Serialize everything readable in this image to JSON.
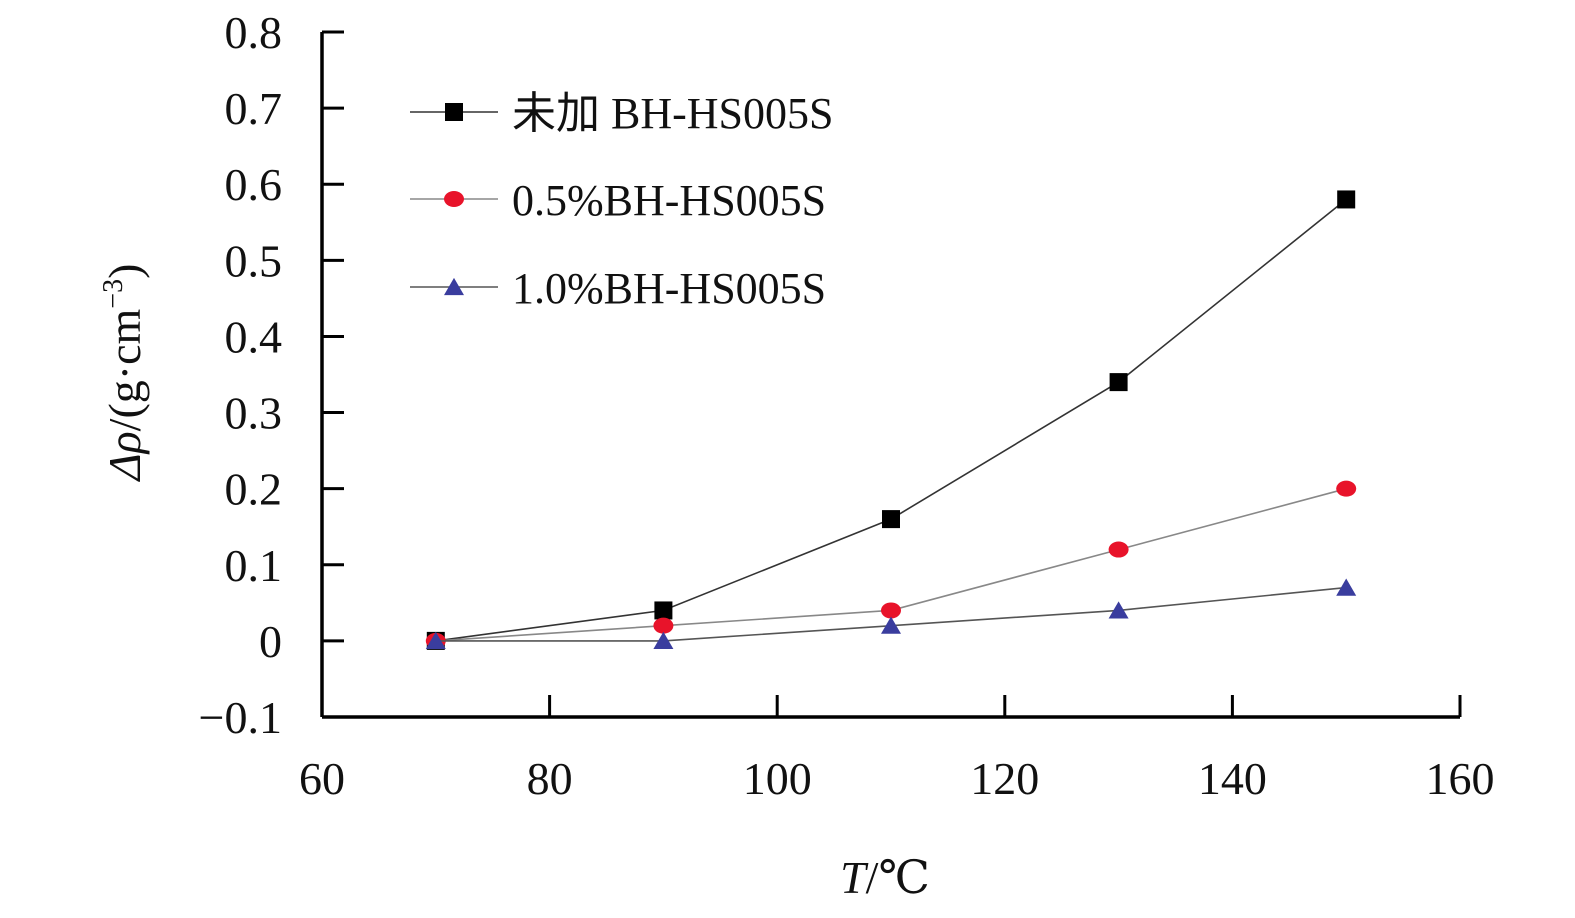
{
  "chart_data": {
    "type": "line",
    "xlabel": "T/℃",
    "ylabel": "Δρ/(g·cm⁻³)",
    "xlabel_parts": {
      "italic": "T",
      "rest": "/℃"
    },
    "ylabel_parts": {
      "italic": "Δρ",
      "rest": "/(g·cm",
      "sup": "−3",
      "close": ")"
    },
    "xlim": [
      60,
      160
    ],
    "ylim": [
      -0.1,
      0.8
    ],
    "xticks": [
      60,
      80,
      100,
      120,
      140,
      160
    ],
    "xtick_labels": [
      "60",
      "80",
      "100",
      "120",
      "140",
      "160"
    ],
    "yticks": [
      -0.1,
      0,
      0.1,
      0.2,
      0.3,
      0.4,
      0.5,
      0.6,
      0.7,
      0.8
    ],
    "ytick_labels": [
      "−0.1",
      "0",
      "0.1",
      "0.2",
      "0.3",
      "0.4",
      "0.5",
      "0.6",
      "0.7",
      "0.8"
    ],
    "grid": false,
    "legend_position": "top-left",
    "x": [
      70,
      90,
      110,
      130,
      150
    ],
    "series": [
      {
        "name": "未加 BH-HS005S",
        "values": [
          0,
          0.04,
          0.16,
          0.34,
          0.58
        ],
        "marker": "square",
        "color": "#000000",
        "line_color": "#333333"
      },
      {
        "name": "0.5%BH-HS005S",
        "values": [
          0,
          0.02,
          0.04,
          0.12,
          0.2
        ],
        "marker": "circle",
        "color": "#e8132a",
        "line_color": "#888888"
      },
      {
        "name": "1.0%BH-HS005S",
        "values": [
          0,
          0,
          0.02,
          0.04,
          0.07
        ],
        "marker": "triangle",
        "color": "#3a3d9e",
        "line_color": "#555555"
      }
    ]
  }
}
